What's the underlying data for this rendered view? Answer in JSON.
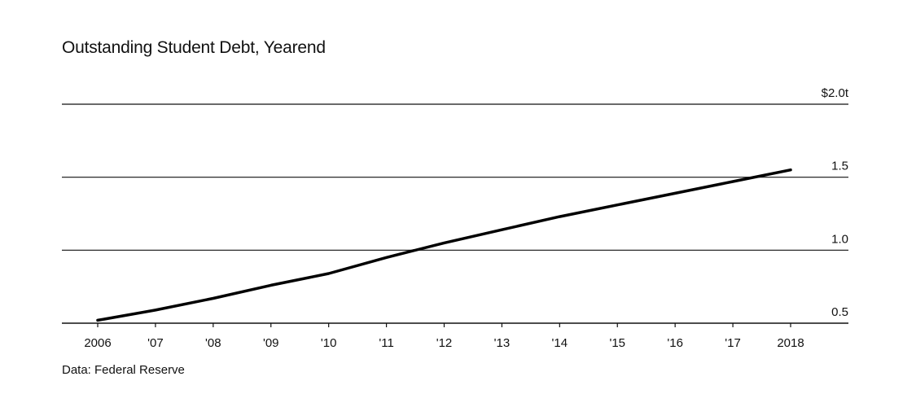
{
  "chart_data": {
    "type": "line",
    "title": "Outstanding Student Debt, Yearend",
    "source": "Data: Federal Reserve",
    "xlabel": "",
    "ylabel": "",
    "x": [
      2006,
      2007,
      2008,
      2009,
      2010,
      2011,
      2012,
      2013,
      2014,
      2015,
      2016,
      2017,
      2018
    ],
    "x_tick_labels": [
      "2006",
      "'07",
      "'08",
      "'09",
      "'10",
      "'11",
      "'12",
      "'13",
      "'14",
      "'15",
      "'16",
      "'17",
      "2018"
    ],
    "y_ticks": [
      0.5,
      1.0,
      1.5,
      2.0
    ],
    "y_tick_labels": [
      "0.5",
      "1.0",
      "1.5",
      "$2.0t"
    ],
    "ylim": [
      0.5,
      2.0
    ],
    "grid": true,
    "series": [
      {
        "values": [
          0.52,
          0.59,
          0.67,
          0.76,
          0.84,
          0.95,
          1.05,
          1.14,
          1.23,
          1.31,
          1.39,
          1.47,
          1.55
        ],
        "color": "#000000"
      }
    ]
  }
}
